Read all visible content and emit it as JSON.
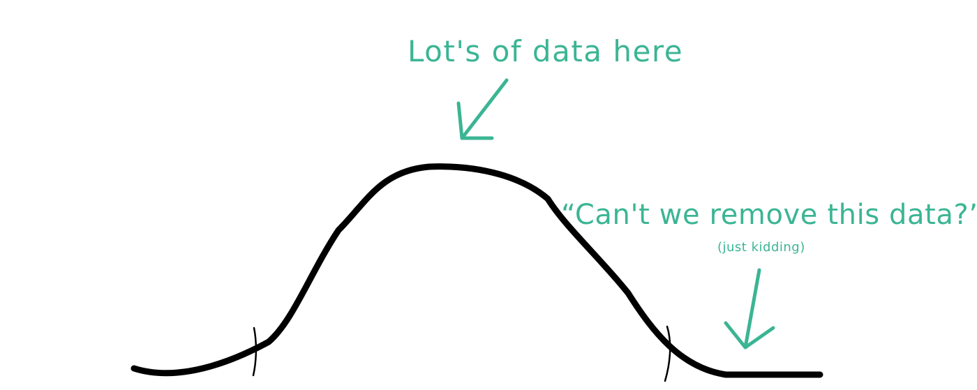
{
  "annotations": {
    "peak_label": "Lot's of data here",
    "tail_label": "“Can't we remove this data?”",
    "tail_sublabel": "(just kidding)"
  },
  "colors": {
    "curve": "#000000",
    "annotation": "#3bb594"
  },
  "shapes": {
    "curve": "bell-curve",
    "left_cut": "tick-mark",
    "right_cut": "tick-mark",
    "peak_pointer": "arrow-down-left",
    "tail_pointer": "arrow-down"
  }
}
